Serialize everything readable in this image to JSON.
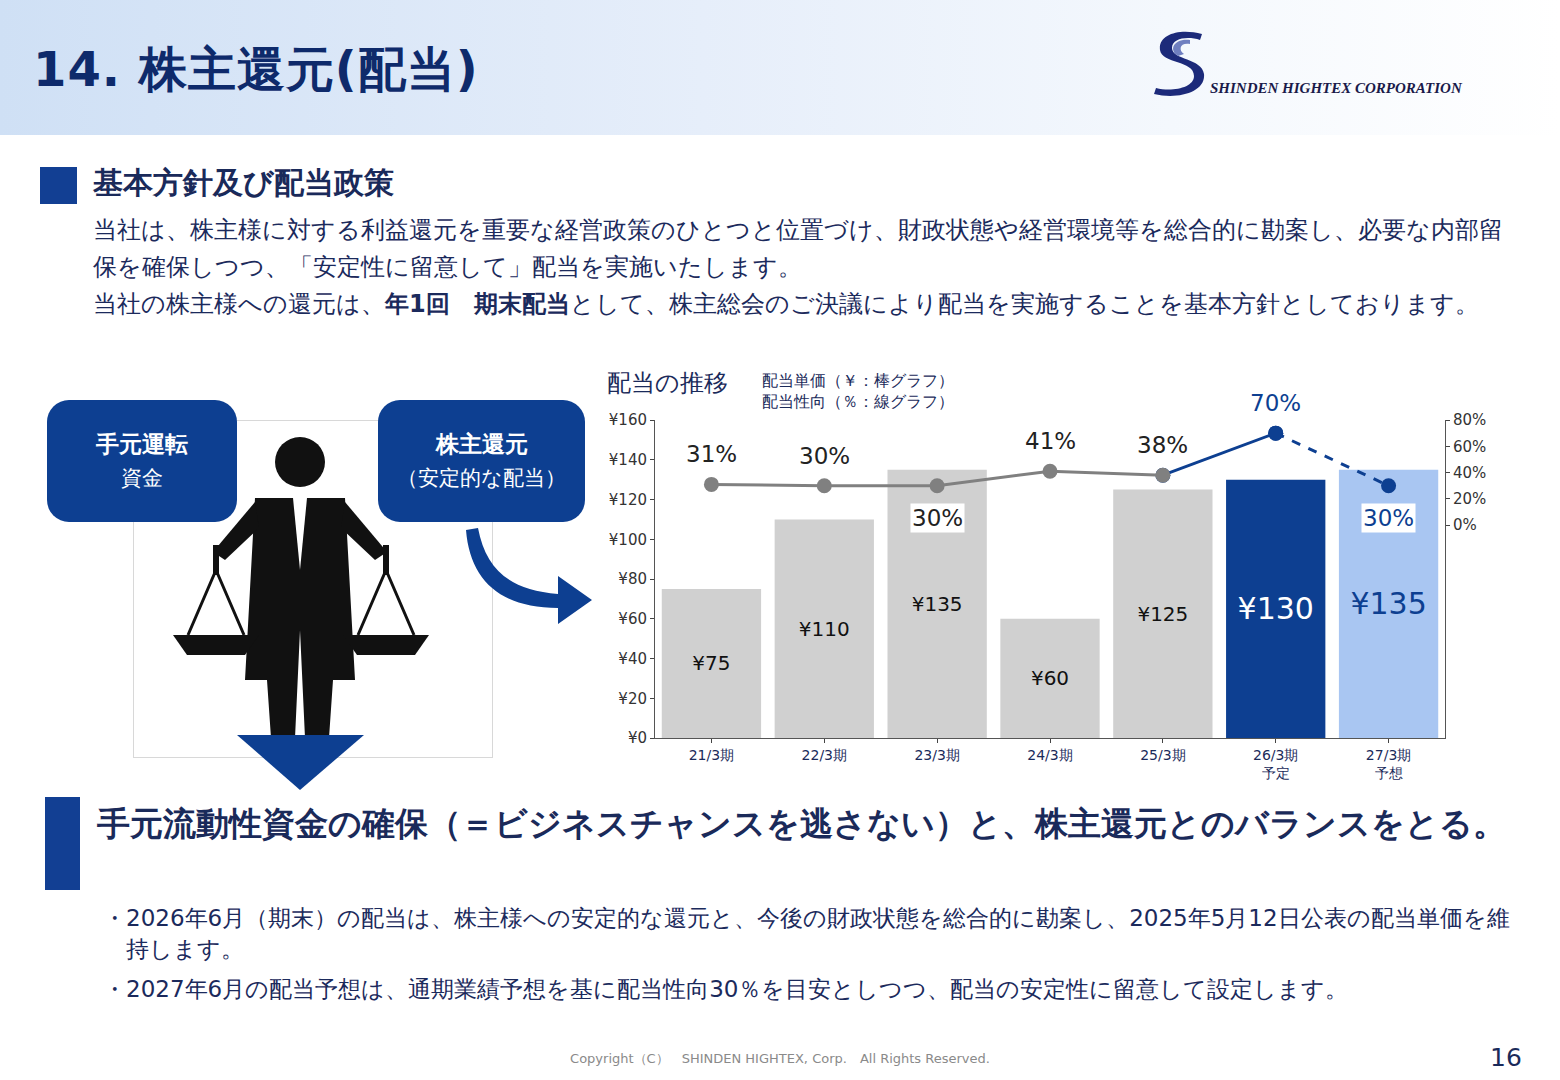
{
  "header": {
    "title": "14. 株主還元(配当)",
    "logo": "SHINDEN HIGHTEX CORPORATION"
  },
  "policy": {
    "heading": "基本方針及び配当政策",
    "paragraphs": [
      [
        {
          "text": "当社は、株主様に対する利益還元を重要な経営政策のひとつと位置づけ、財政状態や経営環境等を総合的に勘案し、必要な内部留保を確保しつつ、「安定性に留意して」配当を実施いたします。",
          "bold": false
        }
      ],
      [
        {
          "text": "当社の株主様への還元は、",
          "bold": false
        },
        {
          "text": "年1回　期末配当",
          "bold": true
        },
        {
          "text": "として、株主総会のご決議により配当を実施することを基本方針としております。",
          "bold": false
        }
      ]
    ]
  },
  "diagram": {
    "left_box": [
      "手元運転",
      "資金"
    ],
    "right_box": [
      "株主還元",
      "（安定的な配当）"
    ]
  },
  "chart_data": {
    "type": "bar",
    "title": "配当の推移",
    "subtitle": "配当単価（￥：棒グラフ）\n配当性向（％：線グラフ）",
    "categories": [
      "21/3期",
      "22/3期",
      "23/3期",
      "24/3期",
      "25/3期",
      "26/3期\n予定",
      "27/3期\n予想"
    ],
    "series": [
      {
        "type": "bar",
        "values": [
          75,
          110,
          135,
          60,
          125,
          130,
          135
        ],
        "value_labels": [
          "¥75",
          "¥110",
          "¥135",
          "¥60",
          "¥125",
          "¥130",
          "¥135"
        ],
        "colors": [
          "#d0d0d0",
          "#d0d0d0",
          "#d0d0d0",
          "#d0d0d0",
          "#d0d0d0",
          "#0d3f91",
          "#a9c6f2"
        ]
      },
      {
        "type": "line",
        "axis": "y2",
        "color": "#808080",
        "marker": "circle",
        "line_style": "solid",
        "values": [
          31,
          30,
          30,
          41,
          38,
          null,
          null
        ],
        "value_labels": [
          "31%",
          "30%",
          "30%",
          "41%",
          "38%",
          null,
          null
        ]
      },
      {
        "type": "line",
        "axis": "y2",
        "color": "#0d3f91",
        "marker": "circle",
        "line_style": "solid",
        "values": [
          null,
          null,
          null,
          null,
          38,
          70,
          null
        ],
        "value_labels": [
          null,
          null,
          null,
          null,
          null,
          "70%",
          null
        ]
      },
      {
        "type": "line",
        "axis": "y2",
        "color": "#0d3f91",
        "marker": "circle",
        "line_style": "dashed",
        "values": [
          null,
          null,
          null,
          null,
          null,
          70,
          30
        ],
        "value_labels": [
          null,
          null,
          null,
          null,
          null,
          null,
          "30%"
        ]
      }
    ],
    "ylim": [
      0,
      160
    ],
    "yticks": [
      {
        "value": 0,
        "label": "¥0"
      },
      {
        "value": 20,
        "label": "¥20"
      },
      {
        "value": 40,
        "label": "¥40"
      },
      {
        "value": 60,
        "label": "¥60"
      },
      {
        "value": 80,
        "label": "¥80"
      },
      {
        "value": 100,
        "label": "¥100"
      },
      {
        "value": 120,
        "label": "¥120"
      },
      {
        "value": 140,
        "label": "¥140"
      },
      {
        "value": 160,
        "label": "¥160"
      }
    ],
    "y2lim": [
      -162,
      80
    ],
    "y2ticks": [
      {
        "value": 0,
        "label": "0%"
      },
      {
        "value": 20,
        "label": "20%"
      },
      {
        "value": 40,
        "label": "40%"
      },
      {
        "value": 60,
        "label": "60%"
      },
      {
        "value": 80,
        "label": "80%"
      }
    ],
    "grid": false,
    "data_labels": true
  },
  "conclusion": {
    "heading": "手元流動性資金の確保（＝ビジネスチャンスを逃さない）と、株主還元とのバランスをとる。",
    "bullets": [
      "・2026年6月（期末）の配当は、株主様への安定的な還元と、今後の財政状態を総合的に勘案し、2025年5月12日公表の配当単価を維持します。",
      "・2027年6月の配当予想は、通期業績予想を基に配当性向30％を目安としつつ、配当の安定性に留意して設定します。"
    ]
  },
  "footer": {
    "copyright": "Copyright（C）　SHINDEN HIGHTEX, Corp.　All Rights Reserved.",
    "page": "16"
  }
}
